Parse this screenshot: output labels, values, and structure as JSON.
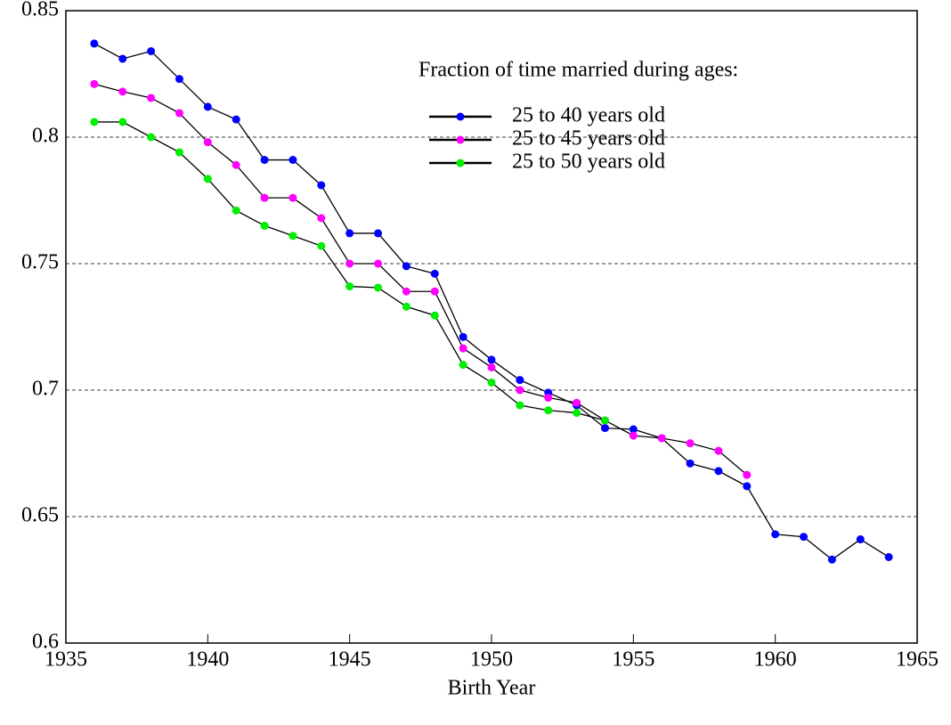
{
  "chart_data": {
    "type": "line",
    "xlabel": "Birth Year",
    "legend_title": "Fraction of time married during ages:",
    "legend": "upper right",
    "grid": true,
    "line_color": "#000000",
    "x": [
      1936,
      1937,
      1938,
      1939,
      1940,
      1941,
      1942,
      1943,
      1944,
      1945,
      1946,
      1947,
      1948,
      1949,
      1950,
      1951,
      1952,
      1953,
      1954,
      1955,
      1956,
      1957,
      1958,
      1959,
      1960,
      1961,
      1962,
      1963,
      1964
    ],
    "series": [
      {
        "name": "25 to 40 years old",
        "color": "#0000ff",
        "values": [
          0.837,
          0.831,
          0.834,
          0.823,
          0.812,
          0.807,
          0.791,
          0.791,
          0.781,
          0.762,
          0.762,
          0.749,
          0.746,
          0.721,
          0.712,
          0.704,
          0.699,
          0.694,
          0.685,
          0.6845,
          0.681,
          0.671,
          0.668,
          0.662,
          0.643,
          0.642,
          0.633,
          0.641,
          0.634
        ]
      },
      {
        "name": "25 to 45 years old",
        "color": "#ff00ff",
        "values": [
          0.821,
          0.818,
          0.8155,
          0.8095,
          0.798,
          0.789,
          0.776,
          0.776,
          0.768,
          0.75,
          0.75,
          0.739,
          0.739,
          0.7165,
          0.709,
          0.7,
          0.697,
          0.695,
          0.688,
          0.682,
          0.681,
          0.679,
          0.676,
          0.6665,
          null,
          null,
          null,
          null,
          null
        ]
      },
      {
        "name": "25 to 50 years old",
        "color": "#00ee00",
        "values": [
          0.806,
          0.806,
          0.8,
          0.794,
          0.7835,
          0.771,
          0.765,
          0.761,
          0.757,
          0.741,
          0.7405,
          0.733,
          0.7295,
          0.71,
          0.703,
          0.694,
          0.692,
          0.691,
          0.688,
          null,
          null,
          null,
          null,
          null,
          null,
          null,
          null,
          null,
          null
        ]
      }
    ],
    "xlim": [
      1935,
      1965
    ],
    "xticks": [
      1935,
      1940,
      1945,
      1950,
      1955,
      1960,
      1965
    ],
    "ylim": [
      0.6,
      0.85
    ],
    "yticks": [
      0.6,
      0.65,
      0.7,
      0.75,
      0.8,
      0.85
    ]
  }
}
